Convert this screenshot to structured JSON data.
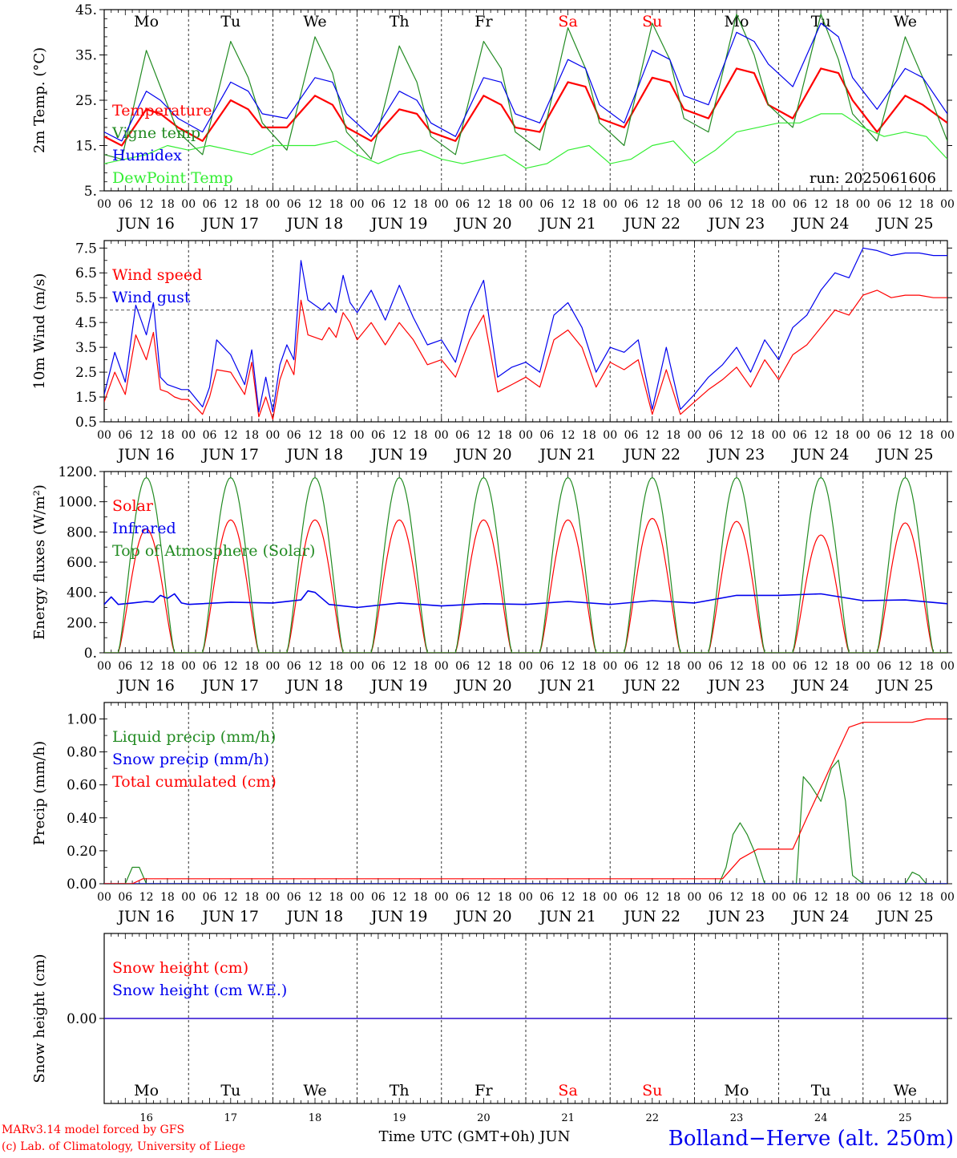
{
  "footer": {
    "model_line1": "MARv3.14 model forced by GFS",
    "model_line2": "(c) Lab. of Climatology, University of Liege",
    "time_label": "Time UTC (GMT+0h) JUN",
    "location": "Bolland−Herve (alt. 250m)"
  },
  "colors": {
    "red": "#ff0000",
    "blue": "#0000ee",
    "green": "#228b22",
    "lightgreen": "#33ee33",
    "black": "#000000"
  },
  "run_label": "run: 2025061606",
  "days": [
    {
      "abbr": "Mo",
      "date": "JUN 16",
      "num": "16",
      "weekend": false
    },
    {
      "abbr": "Tu",
      "date": "JUN 17",
      "num": "17",
      "weekend": false
    },
    {
      "abbr": "We",
      "date": "JUN 18",
      "num": "18",
      "weekend": false
    },
    {
      "abbr": "Th",
      "date": "JUN 19",
      "num": "19",
      "weekend": false
    },
    {
      "abbr": "Fr",
      "date": "JUN 20",
      "num": "20",
      "weekend": false
    },
    {
      "abbr": "Sa",
      "date": "JUN 21",
      "num": "21",
      "weekend": true
    },
    {
      "abbr": "Su",
      "date": "JUN 22",
      "num": "22",
      "weekend": true
    },
    {
      "abbr": "Mo",
      "date": "JUN 23",
      "num": "23",
      "weekend": false
    },
    {
      "abbr": "Tu",
      "date": "JUN 24",
      "num": "24",
      "weekend": false
    },
    {
      "abbr": "We",
      "date": "JUN 25",
      "num": "25",
      "weekend": false
    }
  ],
  "hour_ticks": [
    "00",
    "06",
    "12",
    "18"
  ],
  "chart_data": [
    {
      "type": "line",
      "ylabel": "2m Temp. (°C)",
      "ylim": [
        5,
        45
      ],
      "yticks": [
        "5.",
        "15.",
        "25.",
        "35.",
        "45."
      ],
      "x_unit": "hours since JUN 16 00 UTC",
      "series": [
        {
          "name": "Temperature",
          "color": "#ff0000",
          "x": [
            0,
            5,
            12,
            16,
            21,
            28,
            36,
            41,
            45,
            52,
            60,
            65,
            69,
            76,
            84,
            89,
            93,
            100,
            108,
            113,
            117,
            124,
            132,
            137,
            141,
            148,
            156,
            161,
            165,
            172,
            180,
            185,
            189,
            196,
            204,
            209,
            213,
            220,
            228,
            233,
            240
          ],
          "y": [
            17,
            15,
            23,
            22,
            19,
            16,
            25,
            23,
            19,
            19,
            26,
            24,
            19,
            16,
            23,
            22,
            18,
            16,
            26,
            24,
            19,
            18,
            29,
            28,
            21,
            19,
            30,
            29,
            23,
            21,
            32,
            31,
            24,
            21,
            32,
            31,
            25,
            18,
            26,
            24,
            20
          ]
        },
        {
          "name": "Vigne temp",
          "color": "#228b22",
          "x": [
            0,
            5,
            12,
            16,
            21,
            28,
            36,
            41,
            45,
            52,
            60,
            65,
            69,
            76,
            84,
            89,
            93,
            100,
            108,
            113,
            117,
            124,
            132,
            137,
            141,
            148,
            156,
            161,
            165,
            172,
            180,
            185,
            189,
            196,
            204,
            209,
            213,
            220,
            228,
            233,
            240
          ],
          "y": [
            13,
            12,
            36,
            28,
            18,
            13,
            38,
            30,
            20,
            14,
            39,
            31,
            18,
            12,
            37,
            29,
            17,
            13,
            38,
            32,
            18,
            14,
            41,
            32,
            20,
            15,
            42,
            34,
            21,
            18,
            44,
            35,
            24,
            19,
            44,
            34,
            22,
            16,
            39,
            30,
            16
          ]
        },
        {
          "name": "Humidex",
          "color": "#0000ee",
          "x": [
            0,
            5,
            12,
            16,
            21,
            28,
            36,
            41,
            45,
            52,
            60,
            65,
            69,
            76,
            84,
            89,
            93,
            100,
            108,
            113,
            117,
            124,
            132,
            137,
            141,
            148,
            156,
            161,
            165,
            172,
            180,
            185,
            189,
            196,
            204,
            209,
            213,
            220,
            228,
            233,
            240
          ],
          "y": [
            18,
            16,
            27,
            25,
            21,
            18,
            29,
            27,
            22,
            21,
            30,
            29,
            22,
            17,
            27,
            25,
            20,
            17,
            30,
            29,
            22,
            20,
            34,
            32,
            24,
            20,
            36,
            34,
            26,
            24,
            40,
            38,
            33,
            28,
            42,
            39,
            30,
            23,
            32,
            30,
            22
          ]
        },
        {
          "name": "DewPoint Temp",
          "color": "#33ee33",
          "x": [
            0,
            6,
            12,
            18,
            24,
            30,
            36,
            42,
            48,
            54,
            60,
            66,
            72,
            78,
            84,
            90,
            96,
            102,
            108,
            114,
            120,
            126,
            132,
            138,
            144,
            150,
            156,
            162,
            168,
            174,
            180,
            186,
            192,
            198,
            204,
            210,
            216,
            222,
            228,
            234,
            240
          ],
          "y": [
            11,
            12,
            13,
            15,
            14,
            15,
            14,
            13,
            15,
            15,
            15,
            16,
            13,
            11,
            13,
            14,
            12,
            11,
            12,
            13,
            10,
            11,
            14,
            15,
            11,
            12,
            15,
            16,
            11,
            14,
            18,
            19,
            20,
            20,
            22,
            22,
            19,
            17,
            18,
            17,
            12
          ]
        }
      ]
    },
    {
      "type": "line",
      "ylabel": "10m Wind (m/s)",
      "ylim": [
        0.5,
        7.8
      ],
      "yticks": [
        "0.5",
        "1.5",
        "2.5",
        "3.5",
        "4.5",
        "5.5",
        "6.5",
        "7.5"
      ],
      "reference_line": 5.0,
      "x_unit": "hours since JUN 16 00 UTC",
      "series": [
        {
          "name": "Wind speed",
          "color": "#ff0000",
          "x": [
            0,
            3,
            6,
            9,
            12,
            14,
            16,
            18,
            20,
            22,
            24,
            28,
            30,
            32,
            36,
            40,
            42,
            44,
            46,
            48,
            50,
            52,
            54,
            56,
            58,
            62,
            64,
            66,
            68,
            70,
            72,
            76,
            80,
            84,
            88,
            92,
            96,
            100,
            104,
            108,
            112,
            116,
            120,
            124,
            128,
            132,
            136,
            140,
            144,
            148,
            152,
            156,
            160,
            164,
            168,
            172,
            176,
            180,
            184,
            188,
            192,
            196,
            200,
            204,
            208,
            212,
            216,
            220,
            224,
            228,
            232,
            236,
            240
          ],
          "y": [
            1.3,
            2.5,
            1.6,
            4.0,
            3.0,
            4.1,
            1.8,
            1.7,
            1.5,
            1.4,
            1.4,
            0.8,
            1.5,
            2.6,
            2.5,
            1.6,
            2.9,
            0.7,
            1.5,
            0.6,
            2.2,
            3.0,
            2.4,
            5.4,
            4.0,
            3.8,
            4.3,
            3.9,
            4.9,
            4.5,
            3.8,
            4.5,
            3.6,
            4.5,
            3.8,
            2.8,
            3.0,
            2.3,
            3.8,
            4.8,
            1.7,
            2.0,
            2.3,
            1.9,
            3.8,
            4.2,
            3.5,
            1.9,
            2.9,
            2.6,
            3.0,
            0.8,
            2.6,
            0.8,
            1.3,
            1.8,
            2.2,
            2.7,
            1.9,
            3.0,
            2.2,
            3.2,
            3.6,
            4.3,
            5.0,
            4.8,
            5.6,
            5.8,
            5.5,
            5.6,
            5.6,
            5.5,
            5.5
          ]
        },
        {
          "name": "Wind gust",
          "color": "#0000ee",
          "x": [
            0,
            3,
            6,
            9,
            12,
            14,
            16,
            18,
            20,
            22,
            24,
            28,
            30,
            32,
            36,
            40,
            42,
            44,
            46,
            48,
            50,
            52,
            54,
            56,
            58,
            62,
            64,
            66,
            68,
            70,
            72,
            76,
            80,
            84,
            88,
            92,
            96,
            100,
            104,
            108,
            112,
            116,
            120,
            124,
            128,
            132,
            136,
            140,
            144,
            148,
            152,
            156,
            160,
            164,
            168,
            172,
            176,
            180,
            184,
            188,
            192,
            196,
            200,
            204,
            208,
            212,
            216,
            220,
            224,
            228,
            232,
            236,
            240
          ],
          "y": [
            1.6,
            3.3,
            2.1,
            5.2,
            4.0,
            5.3,
            2.3,
            2.0,
            1.9,
            1.8,
            1.8,
            1.1,
            1.9,
            3.8,
            3.2,
            2.0,
            3.4,
            0.9,
            2.3,
            0.9,
            2.8,
            3.6,
            3.0,
            7.0,
            5.4,
            5.0,
            5.3,
            4.9,
            6.4,
            5.3,
            4.9,
            5.8,
            4.6,
            6.0,
            4.7,
            3.6,
            3.8,
            2.9,
            5.0,
            6.2,
            2.3,
            2.7,
            2.9,
            2.5,
            4.8,
            5.3,
            4.3,
            2.5,
            3.5,
            3.3,
            3.8,
            1.0,
            3.5,
            1.0,
            1.6,
            2.3,
            2.8,
            3.5,
            2.5,
            3.8,
            3.0,
            4.3,
            4.8,
            5.8,
            6.5,
            6.3,
            7.5,
            7.4,
            7.2,
            7.3,
            7.3,
            7.2,
            7.2
          ]
        }
      ]
    },
    {
      "type": "line",
      "ylabel": "Energy fluxes (W/m²)",
      "ylim": [
        0,
        1200
      ],
      "yticks": [
        "0.",
        "200.",
        "400.",
        "600.",
        "800.",
        "1000.",
        "1200."
      ],
      "x_unit": "hours since JUN 16 00 UTC",
      "series": [
        {
          "name": "Solar",
          "color": "#ff0000",
          "daily_peaks": [
            820,
            880,
            880,
            880,
            880,
            880,
            890,
            870,
            780,
            860
          ],
          "sunrise_hour": 4,
          "sunset_hour": 20
        },
        {
          "name": "Infrared",
          "color": "#0000ee",
          "x": [
            0,
            2,
            4,
            8,
            12,
            14,
            16,
            18,
            20,
            22,
            24,
            36,
            48,
            56,
            58,
            60,
            64,
            72,
            84,
            96,
            108,
            120,
            132,
            144,
            156,
            168,
            180,
            192,
            204,
            216,
            228,
            240
          ],
          "y": [
            320,
            370,
            320,
            330,
            340,
            335,
            380,
            360,
            390,
            330,
            320,
            335,
            330,
            350,
            410,
            400,
            320,
            300,
            330,
            310,
            325,
            320,
            340,
            320,
            345,
            330,
            380,
            380,
            390,
            345,
            350,
            325
          ]
        },
        {
          "name": "Top of Atmosphere (Solar)",
          "color": "#228b22",
          "daily_peaks": [
            1160,
            1160,
            1160,
            1160,
            1160,
            1160,
            1160,
            1160,
            1160,
            1160
          ],
          "sunrise_hour": 4,
          "sunset_hour": 20
        }
      ]
    },
    {
      "type": "line",
      "ylabel": "Precip (mm/h)",
      "ylim": [
        0,
        1.1
      ],
      "yticks": [
        "0.00",
        "0.20",
        "0.40",
        "0.60",
        "0.80",
        "1.00"
      ],
      "x_unit": "hours since JUN 16 00 UTC",
      "series": [
        {
          "name": "Liquid precip (mm/h)",
          "color": "#228b22",
          "x": [
            0,
            6,
            8,
            10,
            12,
            175,
            177,
            179,
            181,
            183,
            185,
            188,
            190,
            192,
            197,
            199,
            201,
            204,
            207,
            209,
            211,
            213,
            216,
            228,
            230,
            232,
            234,
            240
          ],
          "y": [
            0,
            0,
            0.1,
            0.1,
            0,
            0,
            0.1,
            0.3,
            0.37,
            0.3,
            0.2,
            0,
            0,
            0,
            0,
            0.65,
            0.6,
            0.5,
            0.7,
            0.75,
            0.5,
            0.05,
            0,
            0,
            0.07,
            0.05,
            0,
            0
          ]
        },
        {
          "name": "Snow precip (mm/h)",
          "color": "#0000ee",
          "x": [
            0,
            240
          ],
          "y": [
            0,
            0
          ]
        },
        {
          "name": "Total cumulated (cm)",
          "color": "#ff0000",
          "x": [
            0,
            8,
            11,
            176,
            181,
            186,
            196,
            200,
            212,
            216,
            230,
            234,
            240
          ],
          "y": [
            0,
            0,
            0.03,
            0.03,
            0.15,
            0.21,
            0.21,
            0.4,
            0.95,
            0.98,
            0.98,
            1.0,
            1.0
          ]
        }
      ]
    },
    {
      "type": "line",
      "ylabel": "Snow height (cm)",
      "ylim": [
        -1,
        1
      ],
      "yticks": [
        "0.00"
      ],
      "x_unit": "hours since JUN 16 00 UTC",
      "series": [
        {
          "name": "Snow height (cm)",
          "color": "#ff0000",
          "x": [
            0,
            240
          ],
          "y": [
            0,
            0
          ]
        },
        {
          "name": "Snow height (cm W.E.)",
          "color": "#0000ee",
          "x": [
            0,
            240
          ],
          "y": [
            0,
            0
          ]
        }
      ]
    }
  ]
}
